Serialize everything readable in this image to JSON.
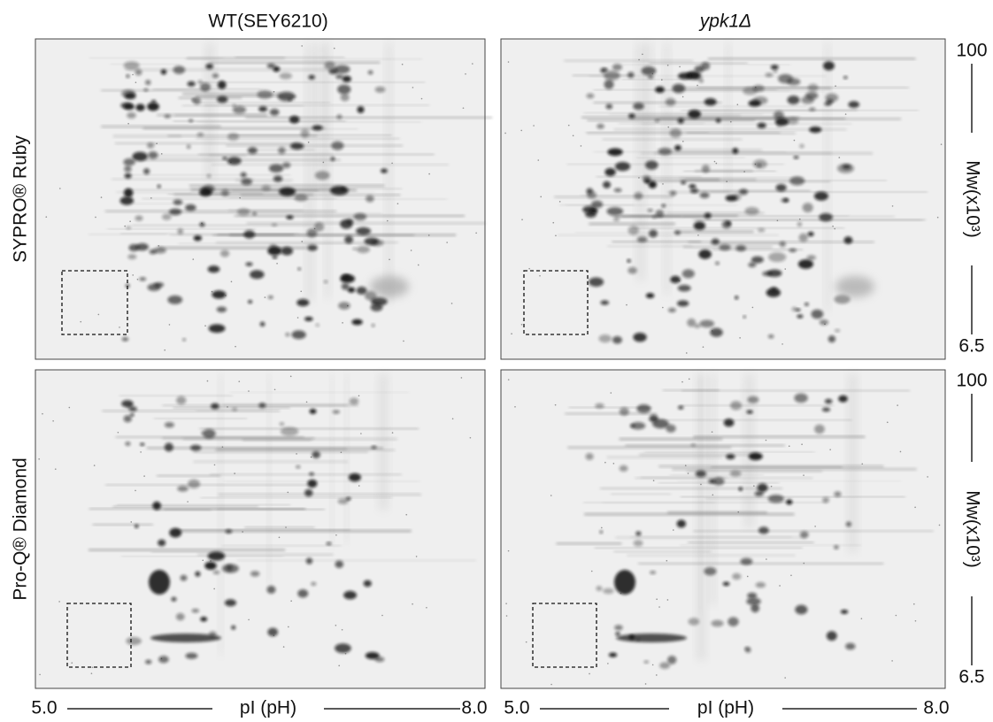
{
  "columns": [
    {
      "title": "WT(SEY6210)",
      "x_axis": {
        "min": "5.0",
        "label": "pI (pH)",
        "max": "8.0"
      }
    },
    {
      "title": "ypk1Δ",
      "x_axis": {
        "min": "5.0",
        "label": "pI (pH)",
        "max": "8.0"
      }
    }
  ],
  "rows": [
    {
      "label": "SYPRO® Ruby",
      "y_axis": {
        "max": "100",
        "label": "Mw(x10³)",
        "min": "6.5"
      }
    },
    {
      "label": "Pro-Q® Diamond",
      "y_axis": {
        "max": "100",
        "label": "Mw(x10³)",
        "min": "6.5"
      }
    }
  ]
}
